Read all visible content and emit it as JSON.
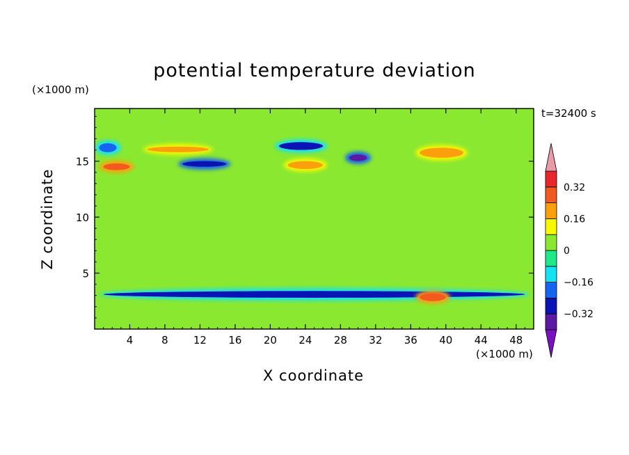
{
  "chart_data": {
    "type": "heatmap",
    "title": "potential temperature deviation",
    "xlabel": "X coordinate",
    "ylabel": "Z coordinate",
    "x_unit_label": "(×1000 m)",
    "y_unit_label": "(×1000 m)",
    "time_label": "t=32400 s",
    "xlim": [
      0,
      50
    ],
    "ylim": [
      0,
      19.7
    ],
    "x_ticks": [
      4,
      8,
      12,
      16,
      20,
      24,
      28,
      32,
      36,
      40,
      44,
      48
    ],
    "y_ticks": [
      5,
      10,
      15
    ],
    "colorbar": {
      "levels": [
        -0.4,
        -0.32,
        -0.24,
        -0.16,
        -0.08,
        0,
        0.08,
        0.16,
        0.24,
        0.32,
        0.4
      ],
      "tick_labels": [
        "0.32",
        "0.16",
        "0",
        "−0.16",
        "−0.32"
      ],
      "tick_values": [
        0.32,
        0.16,
        0,
        -0.16,
        -0.32
      ],
      "colors": [
        "#e89aa8",
        "#e8262c",
        "#f25a1e",
        "#fba00c",
        "#f8f800",
        "#8ae830",
        "#1ee888",
        "#12e2f2",
        "#1466f0",
        "#0a14b4",
        "#5a1aa4",
        "#7a10c0"
      ]
    },
    "background_value": 0.02,
    "features": [
      {
        "x": [
          0.5,
          2.5
        ],
        "z": [
          15.8,
          16.6
        ],
        "value": -0.2
      },
      {
        "x": [
          1,
          4
        ],
        "z": [
          14.2,
          14.8
        ],
        "value": 0.3
      },
      {
        "x": [
          6,
          13
        ],
        "z": [
          15.8,
          16.3
        ],
        "value": 0.18
      },
      {
        "x": [
          10,
          15
        ],
        "z": [
          14.5,
          15
        ],
        "value": -0.3
      },
      {
        "x": [
          21,
          26
        ],
        "z": [
          16,
          16.7
        ],
        "value": -0.25
      },
      {
        "x": [
          22,
          26
        ],
        "z": [
          14.3,
          15
        ],
        "value": 0.2
      },
      {
        "x": [
          29,
          31
        ],
        "z": [
          15,
          15.6
        ],
        "value": -0.4
      },
      {
        "x": [
          37,
          42
        ],
        "z": [
          15.3,
          16.2
        ],
        "value": 0.2
      },
      {
        "x": [
          1,
          49
        ],
        "z": [
          2.8,
          3.4
        ],
        "value": -0.28
      },
      {
        "x": [
          37,
          40
        ],
        "z": [
          2.5,
          3.2
        ],
        "value": 0.3
      }
    ]
  }
}
